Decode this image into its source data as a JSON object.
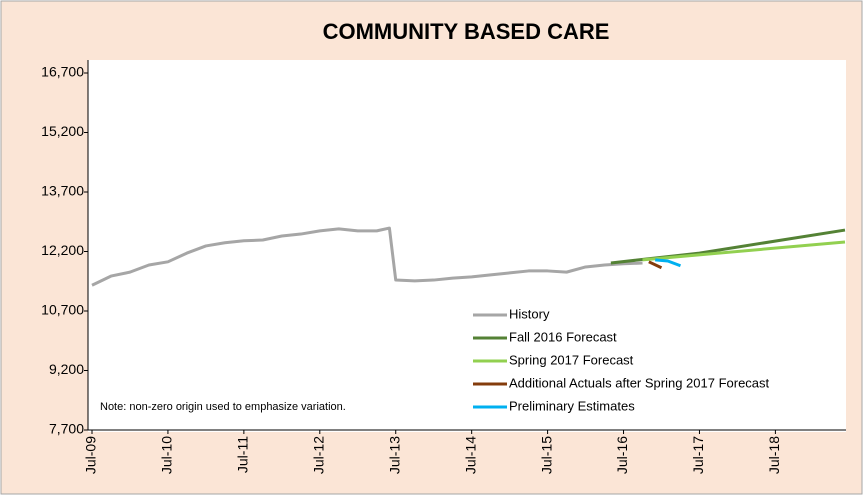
{
  "chart_data": {
    "type": "line",
    "title": "COMMUNITY BASED CARE",
    "note": "Note: non-zero origin used to emphasize variation.",
    "xlim": [
      "2009-07",
      "2019-06"
    ],
    "xticks": [
      {
        "value": "2009-07",
        "label": "Jul-09"
      },
      {
        "value": "2010-07",
        "label": "Jul-10"
      },
      {
        "value": "2011-07",
        "label": "Jul-11"
      },
      {
        "value": "2012-07",
        "label": "Jul-12"
      },
      {
        "value": "2013-07",
        "label": "Jul-13"
      },
      {
        "value": "2014-07",
        "label": "Jul-14"
      },
      {
        "value": "2015-07",
        "label": "Jul-15"
      },
      {
        "value": "2016-07",
        "label": "Jul-16"
      },
      {
        "value": "2017-07",
        "label": "Jul-17"
      },
      {
        "value": "2018-07",
        "label": "Jul-18"
      }
    ],
    "ylim": [
      7700,
      16700
    ],
    "yticks": [
      {
        "value": 7700,
        "label": "7,700"
      },
      {
        "value": 9200,
        "label": "9,200"
      },
      {
        "value": 10700,
        "label": "10,700"
      },
      {
        "value": 12200,
        "label": "12,200"
      },
      {
        "value": 13700,
        "label": "13,700"
      },
      {
        "value": 15200,
        "label": "15,200"
      },
      {
        "value": 16700,
        "label": "16,700"
      }
    ],
    "legend": "lower right",
    "series": [
      {
        "name": "History",
        "color": "#a6a6a6",
        "x": [
          "2009-07",
          "2009-10",
          "2010-01",
          "2010-04",
          "2010-07",
          "2010-10",
          "2011-01",
          "2011-04",
          "2011-07",
          "2011-10",
          "2012-01",
          "2012-04",
          "2012-07",
          "2012-10",
          "2013-01",
          "2013-04",
          "2013-06",
          "2013-07",
          "2013-10",
          "2014-01",
          "2014-04",
          "2014-07",
          "2014-10",
          "2015-01",
          "2015-04",
          "2015-07",
          "2015-10",
          "2016-01",
          "2016-04",
          "2016-07",
          "2016-10"
        ],
        "values": [
          11350,
          11580,
          11680,
          11860,
          11940,
          12160,
          12340,
          12420,
          12470,
          12490,
          12590,
          12640,
          12720,
          12770,
          12720,
          12720,
          12790,
          11480,
          11460,
          11480,
          11530,
          11560,
          11610,
          11660,
          11710,
          11710,
          11680,
          11810,
          11860,
          11890,
          11910
        ]
      },
      {
        "name": "Fall 2016 Forecast",
        "color": "#548235",
        "x": [
          "2016-05",
          "2017-07",
          "2019-06"
        ],
        "values": [
          11910,
          12160,
          12740
        ]
      },
      {
        "name": "Spring 2017 Forecast",
        "color": "#92d050",
        "x": [
          "2016-10",
          "2019-06"
        ],
        "values": [
          11990,
          12440
        ]
      },
      {
        "name": "Additional Actuals after Spring 2017 Forecast",
        "color": "#843c0c",
        "x": [
          "2016-11",
          "2017-01"
        ],
        "values": [
          11940,
          11790
        ]
      },
      {
        "name": "Preliminary Estimates",
        "color": "#00b0f0",
        "x": [
          "2016-12",
          "2017-02",
          "2017-04"
        ],
        "values": [
          11990,
          11960,
          11840
        ]
      }
    ]
  }
}
